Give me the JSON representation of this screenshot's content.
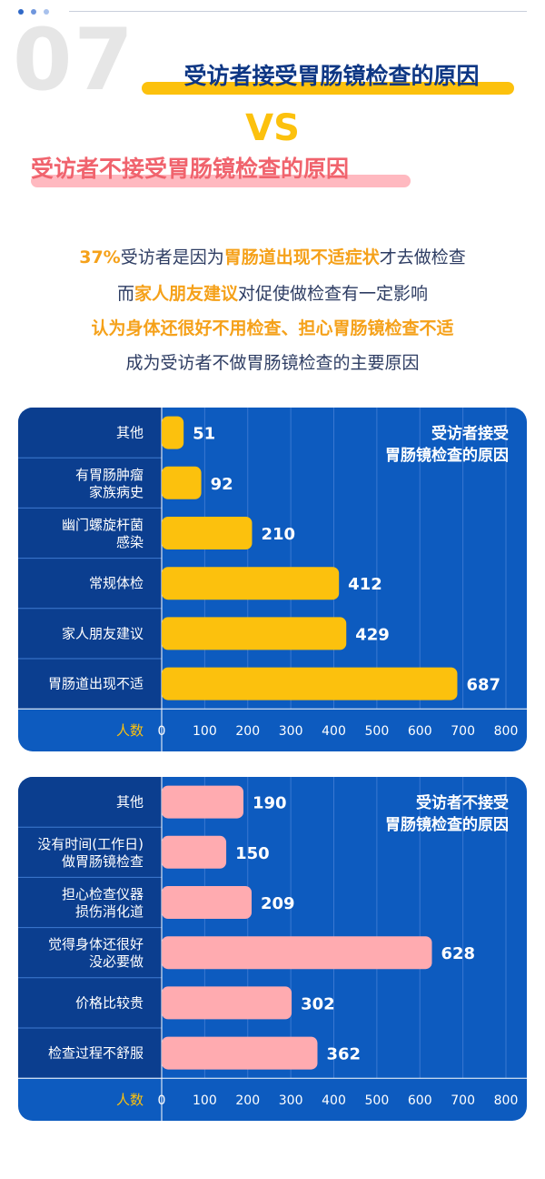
{
  "header": {
    "number": "07",
    "title_primary": "受访者接受胃肠镜检查的原因",
    "vs": "VS",
    "title_secondary": "受访者不接受胃肠镜检查的原因"
  },
  "summary": {
    "line1": {
      "percent": "37%",
      "before": "受访者是因为",
      "highlight": "胃肠道出现不适症状",
      "after": "才去做检查"
    },
    "line2": {
      "before": "而",
      "highlight": "家人朋友建议",
      "after": "对促使做检查有一定影响"
    },
    "line3": "认为身体还很好不用检查、担心胃肠镜检查不适",
    "line4": "成为受访者不做胃肠镜检查的主要原因"
  },
  "colors": {
    "panel_bg": "#0d5bbf",
    "label_column_bg": "#0b3e8f",
    "accept_bar": "#fcc10d",
    "reject_bar": "#ffabb0",
    "axis_label_accept": "#fcc10d",
    "axis_label_reject": "#fcc10d",
    "title_accent": "#fcc10d",
    "title_secondary": "#f0636d"
  },
  "chart_data": [
    {
      "type": "bar",
      "orientation": "horizontal",
      "title": "受访者接受\n胃肠镜检查的原因",
      "categories": [
        "其他",
        "有胃肠肿瘤\n家族病史",
        "幽门螺旋杆菌\n感染",
        "常规体检",
        "家人朋友建议",
        "胃肠道出现不适"
      ],
      "values": [
        51,
        92,
        210,
        412,
        429,
        687
      ],
      "xlabel": "人数",
      "xlim": [
        0,
        800
      ],
      "xticks": [
        0,
        100,
        200,
        300,
        400,
        500,
        600,
        700,
        800
      ],
      "grid": true
    },
    {
      "type": "bar",
      "orientation": "horizontal",
      "title": "受访者不接受\n胃肠镜检查的原因",
      "categories": [
        "其他",
        "没有时间(工作日)\n做胃肠镜检查",
        "担心检查仪器\n损伤消化道",
        "觉得身体还很好\n没必要做",
        "价格比较贵",
        "检查过程不舒服"
      ],
      "values": [
        190,
        150,
        209,
        628,
        302,
        362
      ],
      "xlabel": "人数",
      "xlim": [
        0,
        800
      ],
      "xticks": [
        0,
        100,
        200,
        300,
        400,
        500,
        600,
        700,
        800
      ],
      "grid": true
    }
  ]
}
